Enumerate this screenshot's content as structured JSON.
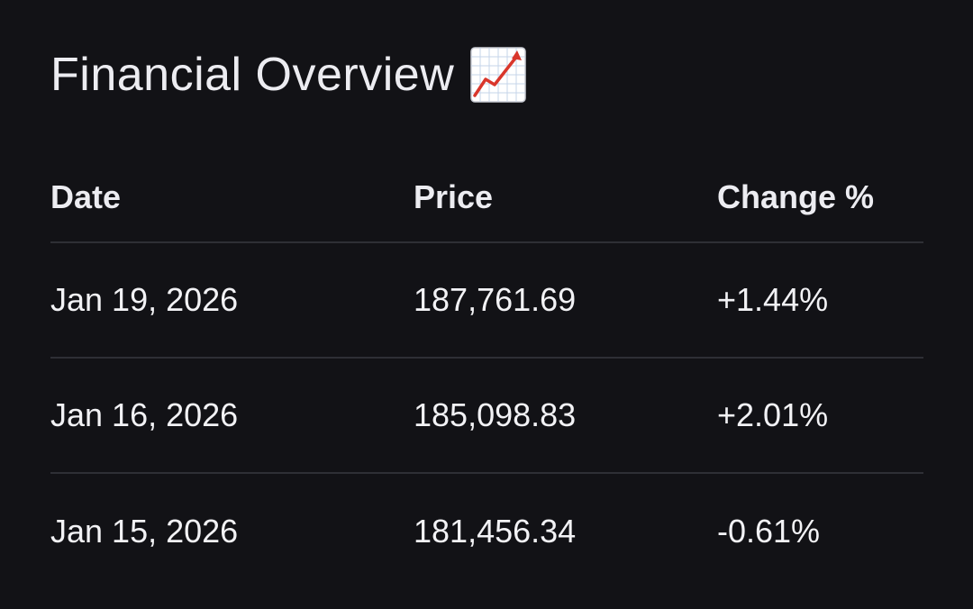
{
  "header": {
    "title": "Financial Overview",
    "icon": "chart-increasing-icon"
  },
  "table": {
    "columns": [
      "Date",
      "Price",
      "Change %"
    ],
    "rows": [
      {
        "date": "Jan 19, 2026",
        "price": "187,761.69",
        "change": "+1.44%"
      },
      {
        "date": "Jan 16, 2026",
        "price": "185,098.83",
        "change": "+2.01%"
      },
      {
        "date": "Jan 15, 2026",
        "price": "181,456.34",
        "change": "-0.61%"
      }
    ]
  },
  "colors": {
    "background": "#121216",
    "text": "#ececf1",
    "divider": "#2e2f35",
    "chart_line": "#d9362b"
  }
}
